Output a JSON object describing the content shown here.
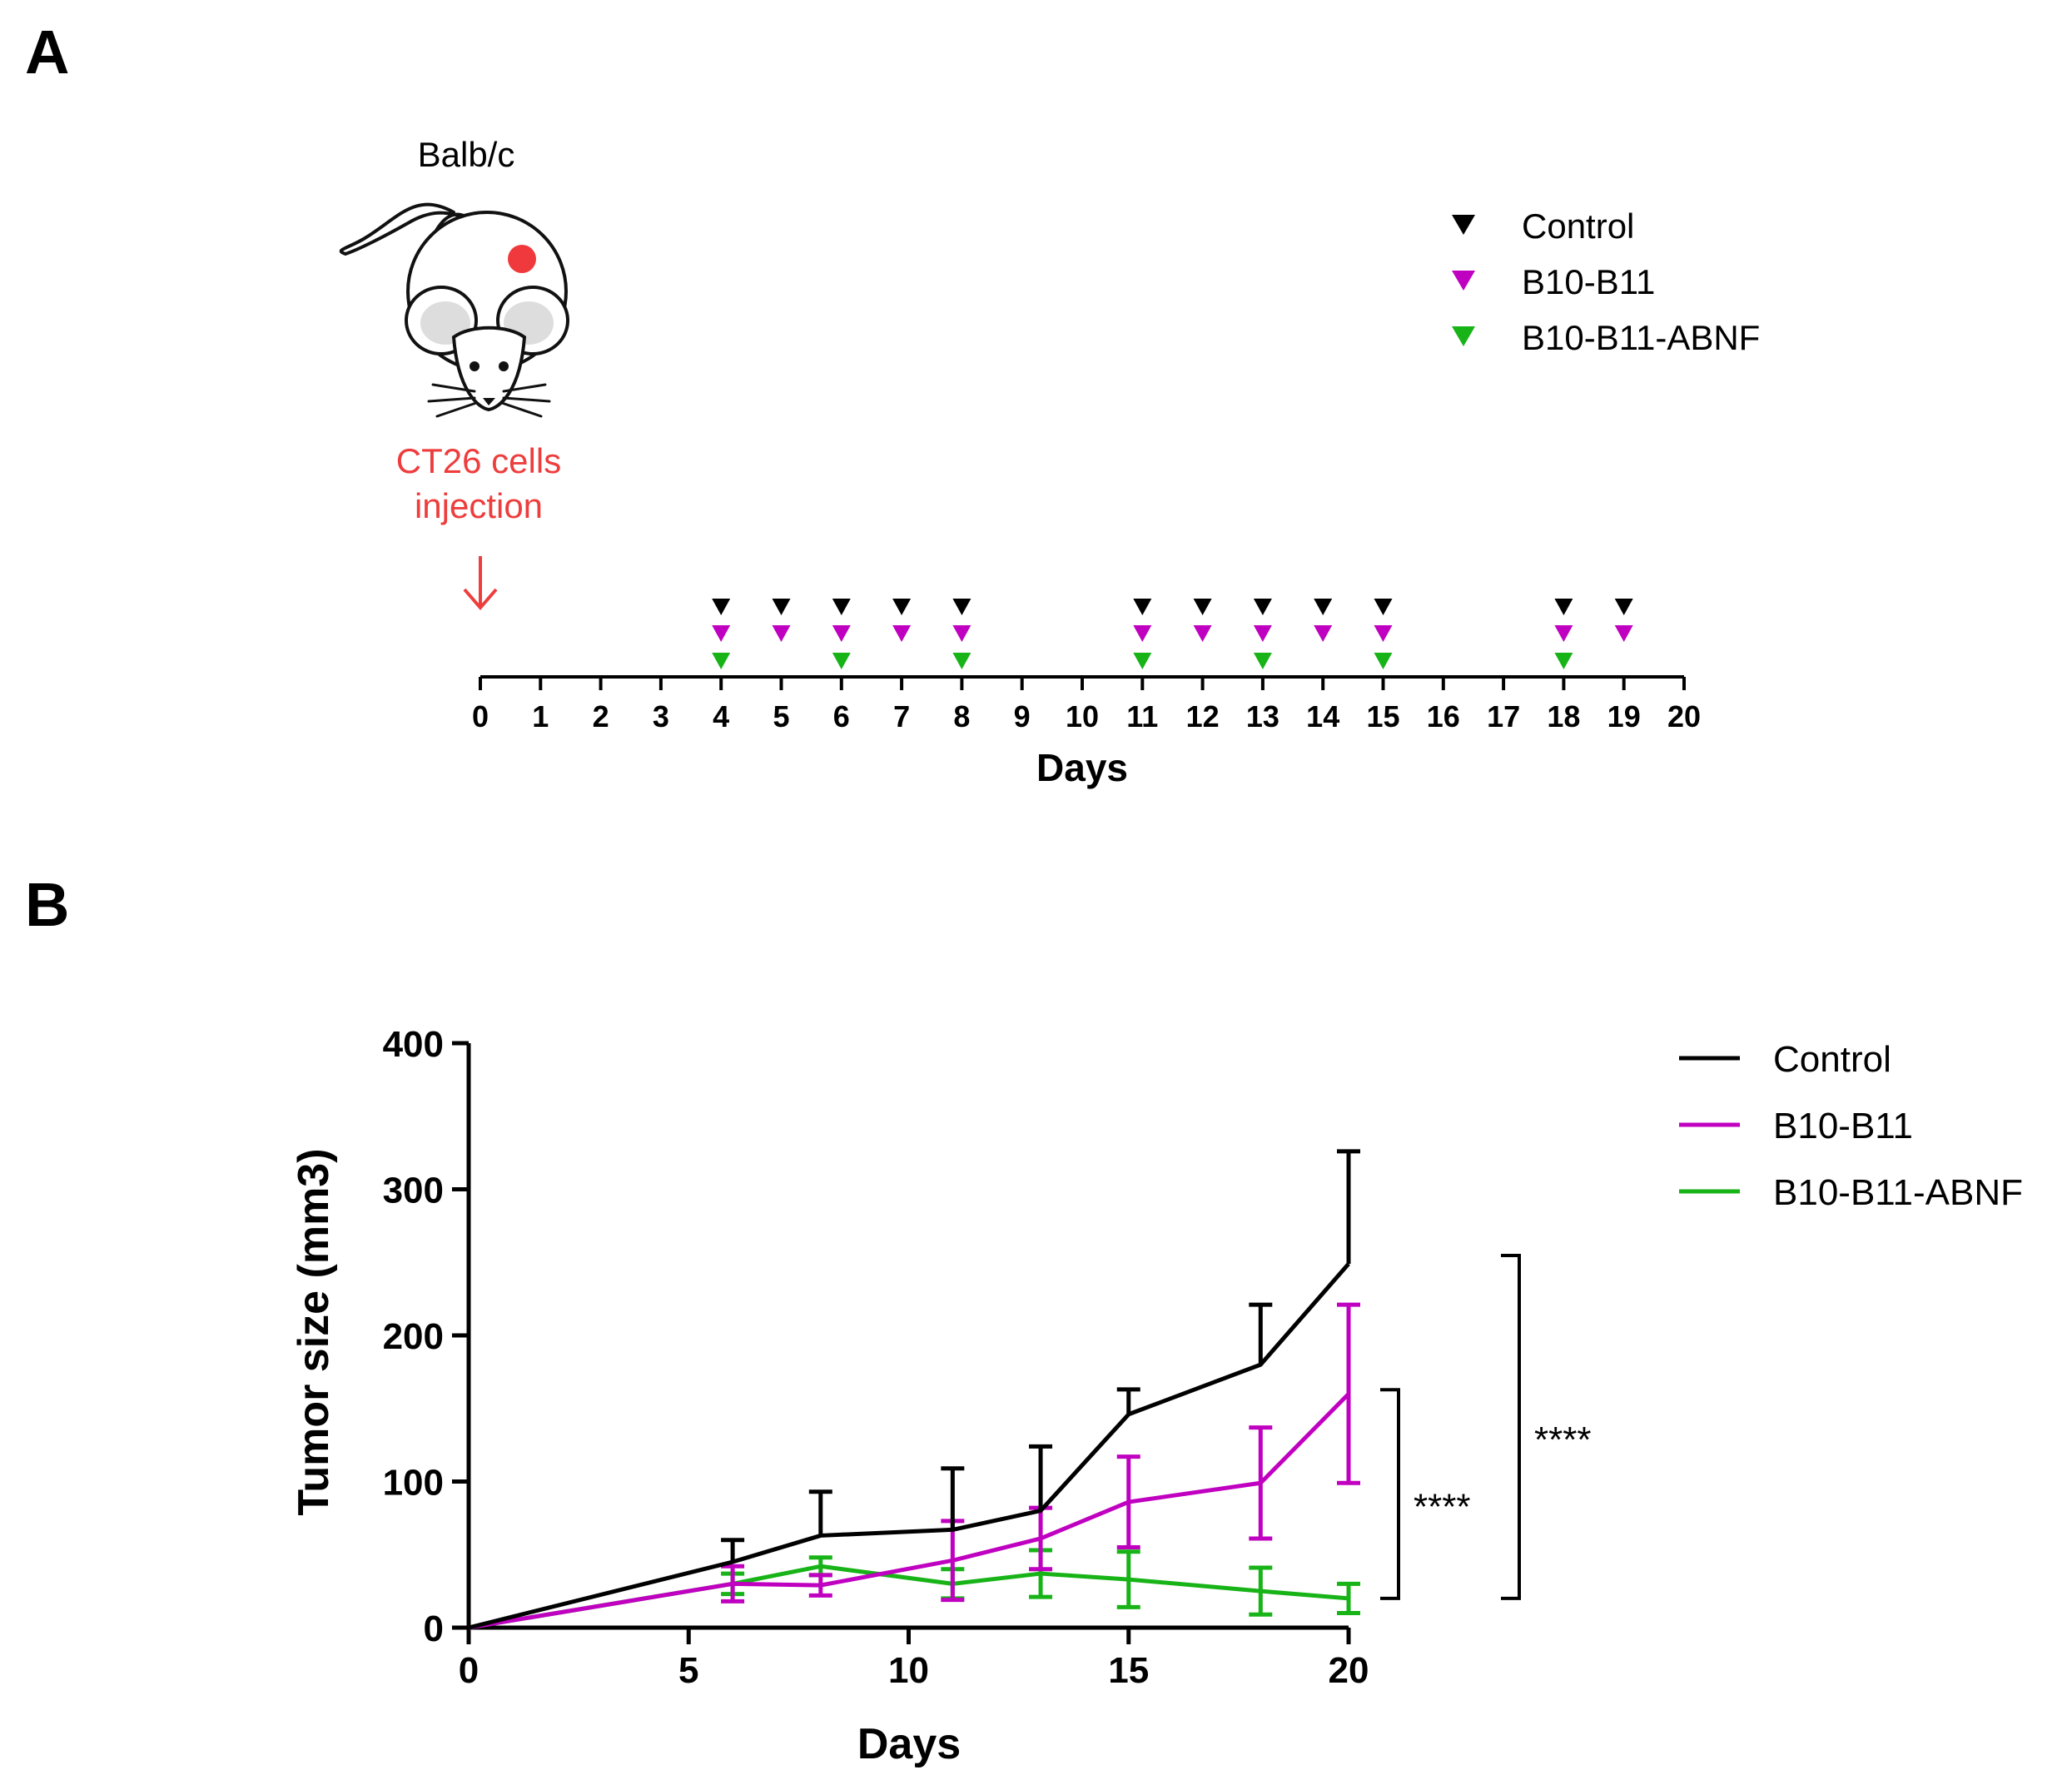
{
  "panel_a": {
    "label": "A",
    "mouse_label": "Balb/c",
    "injection_line1": "CT26 cells",
    "injection_line2": "injection",
    "injection_color": "#ee3d3d",
    "timeline_days": [
      0,
      1,
      2,
      3,
      4,
      5,
      6,
      7,
      8,
      9,
      10,
      11,
      12,
      13,
      14,
      15,
      16,
      17,
      18,
      19,
      20
    ],
    "x_title": "Days",
    "legend": [
      {
        "name": "Control",
        "color": "#000000"
      },
      {
        "name": "B10-B11",
        "color": "#c000c0"
      },
      {
        "name": "B10-B11-ABNF",
        "color": "#17b317"
      }
    ],
    "dosing": [
      {
        "name": "Control",
        "color": "#000000",
        "days": [
          4,
          5,
          6,
          7,
          8,
          11,
          12,
          13,
          14,
          15,
          18,
          19
        ]
      },
      {
        "name": "B10-B11",
        "color": "#c000c0",
        "days": [
          4,
          5,
          6,
          7,
          8,
          11,
          12,
          13,
          14,
          15,
          18,
          19
        ]
      },
      {
        "name": "B10-B11-ABNF",
        "color": "#17b317",
        "days": [
          4,
          6,
          8,
          11,
          13,
          15,
          18
        ]
      }
    ]
  },
  "panel_b": {
    "label": "B",
    "significance": [
      {
        "label": "****",
        "from": "B10-B11",
        "to": "B10-B11-ABNF"
      },
      {
        "label": "****",
        "from": "Control",
        "to": "B10-B11-ABNF"
      }
    ]
  },
  "chart_data": {
    "type": "line",
    "title": "",
    "xlabel": "Days",
    "ylabel": "Tumor size (mm3)",
    "xlim": [
      0,
      20
    ],
    "ylim": [
      0,
      400
    ],
    "xticks": [
      0,
      5,
      10,
      15,
      20
    ],
    "yticks": [
      0,
      100,
      200,
      300,
      400
    ],
    "legend_position": "top-right",
    "series": [
      {
        "name": "Control",
        "color": "#000000",
        "x": [
          0,
          6,
          8,
          11,
          13,
          15,
          18,
          20
        ],
        "y": [
          0,
          45,
          63,
          67,
          80,
          146,
          180,
          249
        ],
        "err": [
          0,
          15,
          30,
          42,
          44,
          17,
          41,
          77
        ],
        "err_dir": "up"
      },
      {
        "name": "B10-B11",
        "color": "#c000c0",
        "x": [
          0,
          6,
          8,
          11,
          13,
          15,
          18,
          20
        ],
        "y": [
          0,
          30,
          29,
          46,
          61,
          86,
          99,
          160
        ],
        "err": [
          0,
          12,
          7,
          27,
          21,
          31,
          38,
          61
        ],
        "err_dir": "both"
      },
      {
        "name": "B10-B11-ABNF",
        "color": "#17b317",
        "x": [
          0,
          6,
          8,
          11,
          13,
          15,
          18,
          20
        ],
        "y": [
          0,
          30,
          42,
          30,
          37,
          33,
          25,
          20
        ],
        "err": [
          0,
          7,
          6,
          10,
          16,
          19,
          16,
          10
        ],
        "err_dir": "both"
      }
    ]
  }
}
